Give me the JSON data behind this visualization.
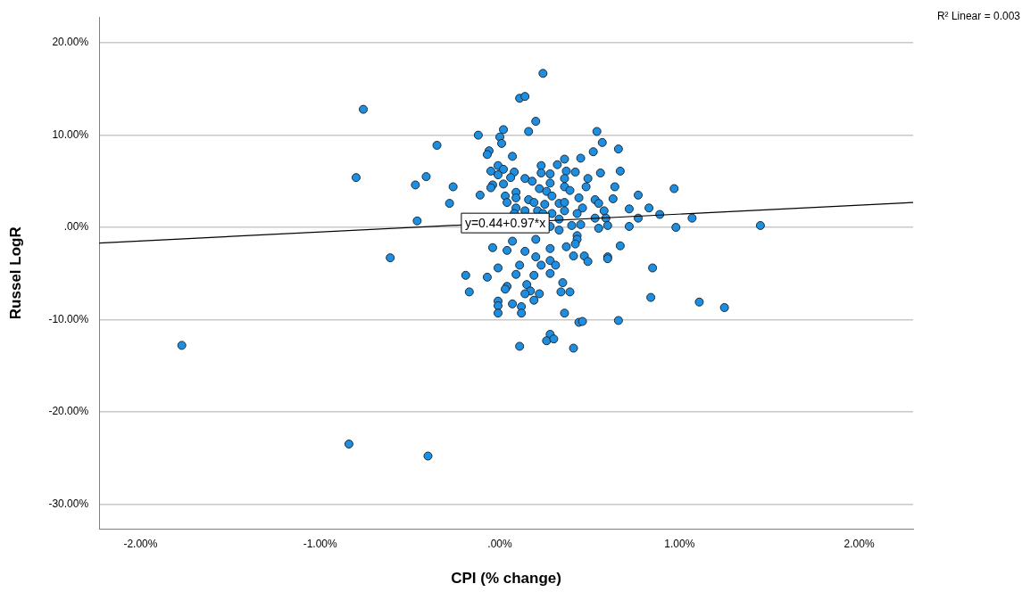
{
  "chart_data": {
    "type": "scatter",
    "xlabel": "CPI (% change)",
    "ylabel": "Russel LogR",
    "xlim": [
      -2.23,
      2.3
    ],
    "ylim": [
      -32.7,
      22.8
    ],
    "xticks": [
      {
        "value": -2,
        "label": "-2.00%"
      },
      {
        "value": -1,
        "label": "-1.00%"
      },
      {
        "value": 0,
        "label": ".00%"
      },
      {
        "value": 1,
        "label": "1.00%"
      },
      {
        "value": 2,
        "label": "2.00%"
      }
    ],
    "yticks": [
      {
        "value": 20,
        "label": "20.00%"
      },
      {
        "value": 10,
        "label": "10.00%"
      },
      {
        "value": 0,
        "label": ".00%"
      },
      {
        "value": -10,
        "label": "-10.00%"
      },
      {
        "value": -20,
        "label": "-20.00%"
      },
      {
        "value": -30,
        "label": "-30.00%"
      }
    ],
    "grid": "y",
    "legend": false,
    "marker": "circle",
    "annotations": [
      "R² Linear = 0.003",
      {
        "text": "y=0.44+0.97*x",
        "x": 0.03,
        "y": 0.47
      }
    ],
    "series": [
      {
        "color": "#1e8fe0",
        "x": [
          -1.77,
          -0.76,
          -0.8,
          -0.35,
          -0.41,
          -0.47,
          -0.28,
          -0.26,
          -0.46,
          -0.61,
          -0.84,
          -0.4,
          0.24,
          0.11,
          0.14,
          0.2,
          0.16,
          0.02,
          0.0,
          0.01,
          -0.12,
          -0.06,
          -0.07,
          0.07,
          -0.01,
          -0.05,
          0.02,
          0.08,
          -0.01,
          0.06,
          0.02,
          -0.04,
          -0.05,
          -0.11,
          0.03,
          0.09,
          0.04,
          0.09,
          0.14,
          0.18,
          0.23,
          0.23,
          0.28,
          0.28,
          0.32,
          0.36,
          0.45,
          0.37,
          0.42,
          0.36,
          0.36,
          0.39,
          0.22,
          0.26,
          0.16,
          0.19,
          0.29,
          0.33,
          0.36,
          0.25,
          0.09,
          0.14,
          0.44,
          0.46,
          0.43,
          0.29,
          0.21,
          0.45,
          0.4,
          0.33,
          0.28,
          -0.04,
          0.04,
          0.07,
          0.14,
          0.2,
          0.2,
          0.23,
          0.28,
          0.28,
          0.31,
          0.37,
          0.41,
          0.28,
          -0.01,
          -0.19,
          -0.07,
          -0.17,
          0.09,
          0.11,
          0.19,
          0.04,
          0.03,
          0.15,
          0.17,
          0.22,
          0.19,
          0.14,
          -0.01,
          -0.01,
          -0.01,
          0.07,
          0.12,
          0.12,
          0.35,
          0.34,
          0.39,
          0.36,
          0.44,
          0.46,
          0.28,
          0.26,
          0.3,
          0.11,
          0.41,
          0.54,
          0.57,
          0.66,
          0.52,
          0.67,
          0.56,
          0.49,
          0.64,
          0.48,
          0.77,
          0.97,
          0.63,
          0.53,
          0.55,
          0.58,
          0.72,
          0.83,
          0.89,
          0.77,
          0.59,
          0.53,
          1.07,
          0.72,
          0.98,
          0.6,
          0.55,
          0.43,
          0.43,
          0.42,
          0.67,
          0.6,
          0.6,
          0.47,
          0.49,
          0.85,
          0.84,
          1.11,
          1.25,
          0.66,
          1.45,
          0.08,
          0.24,
          0.36,
          0.33
        ],
        "values": [
          -12.8,
          12.8,
          5.4,
          8.9,
          5.5,
          4.6,
          2.6,
          4.4,
          0.7,
          -3.3,
          -23.5,
          -24.8,
          16.7,
          14.0,
          14.2,
          11.5,
          10.4,
          10.6,
          9.8,
          9.1,
          10.0,
          8.3,
          7.9,
          7.7,
          6.7,
          6.1,
          6.3,
          6.0,
          5.7,
          5.4,
          4.7,
          4.6,
          4.3,
          3.5,
          3.4,
          3.8,
          2.7,
          3.2,
          5.3,
          5.0,
          6.7,
          5.9,
          5.8,
          4.8,
          6.8,
          7.4,
          7.5,
          6.1,
          6.0,
          5.3,
          4.4,
          4.0,
          4.2,
          3.9,
          3.0,
          2.7,
          3.4,
          2.6,
          2.7,
          2.5,
          2.1,
          1.8,
          3.2,
          2.1,
          1.5,
          1.5,
          1.8,
          0.3,
          0.2,
          -0.3,
          0.1,
          -2.2,
          -2.5,
          -1.5,
          -2.6,
          -1.3,
          -3.2,
          -4.1,
          -2.3,
          -3.6,
          -4.1,
          -2.1,
          -3.1,
          -5.0,
          -4.4,
          -5.2,
          -5.4,
          -7.0,
          -5.1,
          -4.1,
          -5.2,
          -6.4,
          -6.7,
          -6.2,
          -6.9,
          -7.2,
          -7.9,
          -7.2,
          -8.0,
          -8.5,
          -9.3,
          -8.3,
          -8.6,
          -9.3,
          -6.0,
          -7.0,
          -7.0,
          -9.3,
          -10.3,
          -10.2,
          -11.6,
          -12.3,
          -12.1,
          -12.9,
          -13.1,
          10.4,
          9.2,
          8.5,
          8.2,
          6.1,
          5.9,
          5.3,
          4.4,
          4.4,
          3.5,
          4.2,
          3.1,
          3.0,
          2.6,
          1.8,
          2.0,
          2.1,
          1.4,
          1.0,
          1.0,
          1.0,
          1.0,
          0.1,
          0.0,
          0.2,
          -0.1,
          -0.9,
          -1.3,
          -1.8,
          -2.0,
          -3.2,
          -3.4,
          -3.1,
          -3.7,
          -4.4,
          -7.6,
          -8.1,
          -8.7,
          -10.1,
          0.2,
          1.5,
          1.5,
          1.8,
          0.9
        ]
      },
      {
        "type": "line",
        "color": "#000000",
        "marker": "none",
        "x": [
          -2.23,
          2.3
        ],
        "values": [
          -1.7,
          2.7
        ]
      }
    ]
  }
}
